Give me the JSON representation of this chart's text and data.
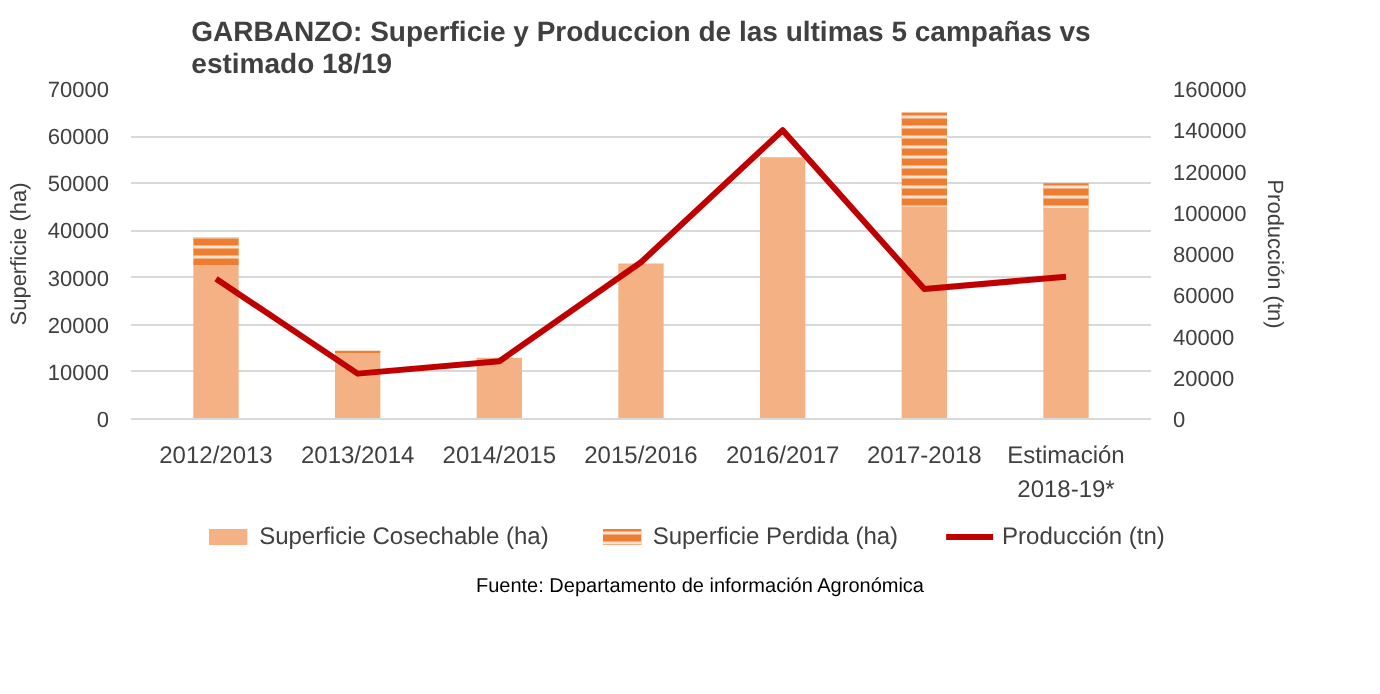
{
  "chart_data": {
    "type": "bar",
    "title": "GARBANZO: Superficie y Produccion de las ultimas 5 campañas vs\nestimado 18/19",
    "categories": [
      "2012/2013",
      "2013/2014",
      "2014/2015",
      "2015/2016",
      "2016/2017",
      "2017-2018",
      "Estimación\n2018-19*"
    ],
    "stacked": true,
    "series": [
      {
        "name": "Superficie Cosechable (ha)",
        "color": "#f4b183",
        "values": [
          32500,
          14000,
          13000,
          33000,
          55500,
          45000,
          44500
        ]
      },
      {
        "name": "Superficie Perdida (ha)",
        "color": "#ed7d31",
        "values": [
          6000,
          500,
          null,
          null,
          null,
          20000,
          5500
        ]
      },
      {
        "name": "Producción (tn)",
        "type": "line",
        "axis": "y2",
        "color": "#c00000",
        "values": [
          68000,
          22000,
          28000,
          76000,
          140000,
          63000,
          69000
        ]
      }
    ],
    "ylabel": "Superficie (ha)",
    "y2label": "Producción (tn)",
    "ylim": [
      0,
      70000
    ],
    "yticks": [
      0,
      10000,
      20000,
      30000,
      40000,
      50000,
      60000,
      70000
    ],
    "y2lim": [
      0,
      160000
    ],
    "y2ticks": [
      0,
      20000,
      40000,
      60000,
      80000,
      100000,
      120000,
      140000,
      160000
    ],
    "grid": "y",
    "legend": "bottom",
    "marker": "none",
    "line_style": "solid",
    "annotations": [
      "Fuente: Departamento de información Agronómica"
    ]
  }
}
